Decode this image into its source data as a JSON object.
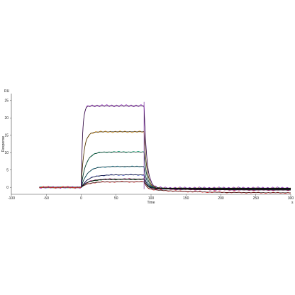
{
  "chart_data": {
    "type": "line",
    "title": "",
    "xlabel": "Time",
    "ylabel": "Response",
    "y_unit": "RU",
    "x_unit": "s",
    "xlim": [
      -100,
      300
    ],
    "ylim": [
      -2,
      27
    ],
    "x_ticks": [
      "-100",
      "-50",
      "0",
      "50",
      "100",
      "150",
      "200",
      "250",
      "300"
    ],
    "y_ticks": [
      "0",
      "5",
      "10",
      "15",
      "20",
      "25"
    ],
    "grid": false,
    "legend": "none",
    "injection_start": 0,
    "injection_end": 90,
    "series": [
      {
        "color": "#9b30c8",
        "plateau": 23.5,
        "ka": 0.5,
        "dissoc_level": -0.2,
        "tail": 0.0
      },
      {
        "color": "#e8a020",
        "plateau": 16.0,
        "ka": 0.25,
        "dissoc_level": -0.3,
        "tail": -0.1
      },
      {
        "color": "#18a878",
        "plateau": 10.2,
        "ka": 0.15,
        "dissoc_level": -0.3,
        "tail": -0.2
      },
      {
        "color": "#20a0c0",
        "plateau": 6.0,
        "ka": 0.12,
        "dissoc_level": -0.3,
        "tail": -0.3
      },
      {
        "color": "#3040c0",
        "plateau": 3.6,
        "ka": 0.1,
        "dissoc_level": -0.3,
        "tail": -0.4
      },
      {
        "color": "#b02080",
        "plateau": 2.4,
        "ka": 0.1,
        "dissoc_level": -0.3,
        "tail": -0.5
      },
      {
        "color": "#208040",
        "plateau": 2.3,
        "ka": 0.1,
        "dissoc_level": -0.3,
        "tail": 0.0
      },
      {
        "color": "#e02020",
        "plateau": 1.6,
        "ka": 0.1,
        "dissoc_level": -0.5,
        "tail": -1.1
      }
    ],
    "fit_color": "#111111"
  }
}
